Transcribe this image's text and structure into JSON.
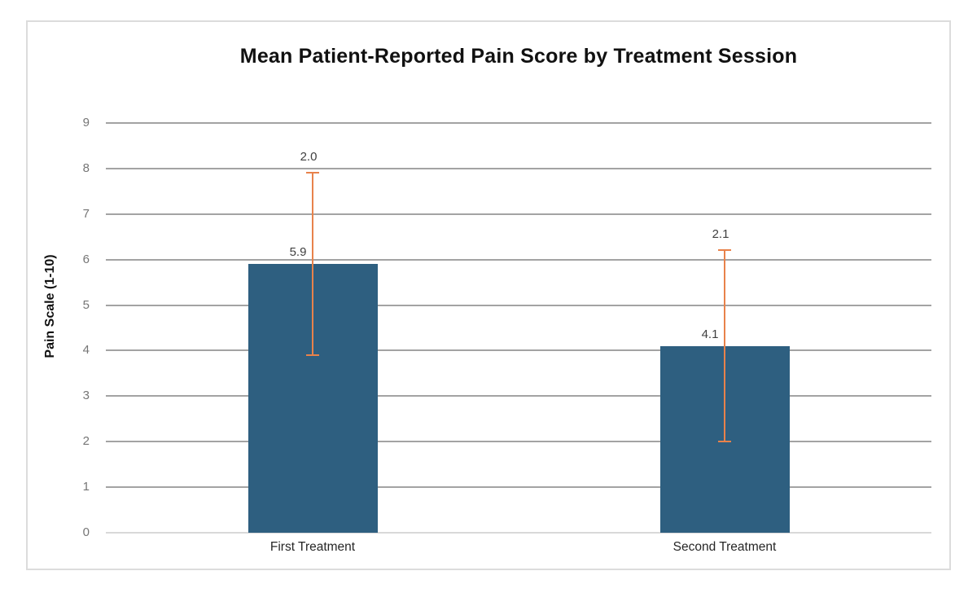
{
  "chart_data": {
    "type": "bar",
    "title": "Mean Patient-Reported Pain Score by Treatment Session",
    "categories": [
      "First Treatment",
      "Second Treatment"
    ],
    "values": [
      5.9,
      4.1
    ],
    "value_labels": [
      "5.9",
      "4.1"
    ],
    "error_values": [
      2.0,
      2.1
    ],
    "error_labels": [
      "2.0",
      "2.1"
    ],
    "xlabel": "",
    "ylabel": "Pain Scale (1-10)",
    "ylim": [
      0,
      9
    ],
    "yticks": [
      0,
      1,
      2,
      3,
      4,
      5,
      6,
      7,
      8,
      9
    ],
    "grid": true,
    "legend": false,
    "colors": {
      "bar_fill": "#2E5F80",
      "error_bar": "#E8824B",
      "gridline": "#A3A3A3",
      "baseline": "#D9D9D9",
      "frame_border": "#DCDCDC",
      "title_text": "#111111",
      "tick_label_text": "#757575",
      "value_label_text": "#404040",
      "category_label_text": "#262626"
    }
  }
}
